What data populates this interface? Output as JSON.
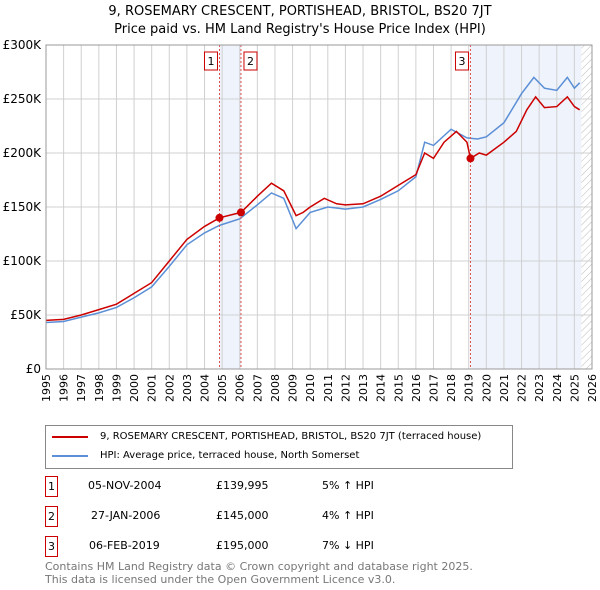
{
  "title": "9, ROSEMARY CRESCENT, PORTISHEAD, BRISTOL, BS20 7JT",
  "subtitle": "Price paid vs. HM Land Registry's House Price Index (HPI)",
  "chart_data": {
    "type": "line",
    "title": "9, ROSEMARY CRESCENT, PORTISHEAD, BRISTOL, BS20 7JT",
    "subtitle": "Price paid vs. HM Land Registry's House Price Index (HPI)",
    "xlim": [
      1995,
      2026
    ],
    "ylim": [
      0,
      300000
    ],
    "x_ticks": [
      "1995",
      "1996",
      "1997",
      "1998",
      "1999",
      "2000",
      "2001",
      "2002",
      "2003",
      "2004",
      "2005",
      "2006",
      "2007",
      "2008",
      "2009",
      "2010",
      "2011",
      "2012",
      "2013",
      "2014",
      "2015",
      "2016",
      "2017",
      "2018",
      "2019",
      "2020",
      "2021",
      "2022",
      "2023",
      "2024",
      "2025",
      "2026"
    ],
    "y_ticks": [
      {
        "v": 0,
        "label": "£0"
      },
      {
        "v": 50000,
        "label": "£50K"
      },
      {
        "v": 100000,
        "label": "£100K"
      },
      {
        "v": 150000,
        "label": "£150K"
      },
      {
        "v": 200000,
        "label": "£200K"
      },
      {
        "v": 250000,
        "label": "£250K"
      },
      {
        "v": 300000,
        "label": "£300K"
      }
    ],
    "series": [
      {
        "name": "9, ROSEMARY CRESCENT, PORTISHEAD, BRISTOL, BS20 7JT (terraced house)",
        "color": "#cc0000",
        "x": [
          1995,
          1996,
          1997,
          1998,
          1999,
          2000,
          2001,
          2002,
          2003,
          2004,
          2004.85,
          2006.07,
          2007,
          2007.8,
          2008.5,
          2009.2,
          2009.6,
          2010,
          2010.8,
          2011.5,
          2012,
          2013,
          2014,
          2015,
          2016,
          2016.5,
          2017,
          2017.6,
          2018.3,
          2018.9,
          2019.1,
          2019.6,
          2020,
          2021,
          2021.7,
          2022.3,
          2022.8,
          2023.3,
          2024,
          2024.6,
          2025,
          2025.3
        ],
        "y": [
          45000,
          46000,
          50000,
          55000,
          60000,
          70000,
          80000,
          100000,
          120000,
          132000,
          139995,
          145000,
          160000,
          172000,
          165000,
          142000,
          145000,
          150000,
          158000,
          153000,
          152000,
          153000,
          160000,
          170000,
          180000,
          200000,
          195000,
          210000,
          220000,
          210000,
          195000,
          200000,
          198000,
          210000,
          220000,
          240000,
          252000,
          242000,
          243000,
          252000,
          243000,
          240000
        ]
      },
      {
        "name": "HPI: Average price, terraced house, North Somerset",
        "color": "#5b8fd6",
        "x": [
          1995,
          1996,
          1997,
          1998,
          1999,
          2000,
          2001,
          2002,
          2003,
          2004,
          2004.85,
          2006,
          2007,
          2007.8,
          2008.5,
          2009.2,
          2010,
          2011,
          2012,
          2013,
          2014,
          2015,
          2016,
          2016.5,
          2017,
          2018,
          2018.9,
          2019.5,
          2020,
          2021,
          2022,
          2022.7,
          2023.3,
          2024,
          2024.6,
          2025,
          2025.3
        ],
        "y": [
          43000,
          44000,
          48000,
          52000,
          57000,
          66000,
          76000,
          95000,
          115000,
          126000,
          133000,
          139000,
          152000,
          163000,
          158000,
          130000,
          145000,
          150000,
          148000,
          150000,
          157000,
          165000,
          178000,
          210000,
          207000,
          222000,
          214000,
          213000,
          215000,
          228000,
          255000,
          270000,
          260000,
          258000,
          270000,
          260000,
          265000
        ]
      }
    ],
    "sales": [
      {
        "label": "1",
        "x": 2004.85,
        "date": "05-NOV-2004",
        "price": "£139,995",
        "price_value": 139995,
        "hpi": "5% ↑ HPI"
      },
      {
        "label": "2",
        "x": 2006.07,
        "date": "27-JAN-2006",
        "price": "£145,000",
        "price_value": 145000,
        "hpi": "4% ↑ HPI"
      },
      {
        "label": "3",
        "x": 2019.1,
        "date": "06-FEB-2019",
        "price": "£195,000",
        "price_value": 195000,
        "hpi": "7% ↓ HPI"
      }
    ],
    "legend_placement": "below",
    "grid": true
  },
  "footer": [
    "Contains HM Land Registry data © Crown copyright and database right 2025.",
    "This data is licensed under the Open Government Licence v3.0."
  ]
}
